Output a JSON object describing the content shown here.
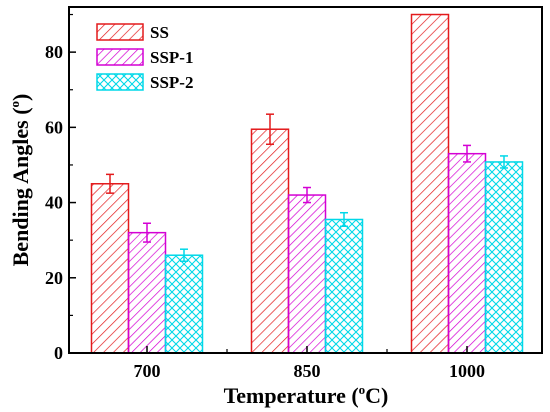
{
  "chart_data": {
    "type": "bar",
    "xlabel": {
      "prefix": "Temperature (",
      "sup": "o",
      "suffix": "C)"
    },
    "ylabel": {
      "prefix": "Bending Angles (",
      "sup": "o",
      "suffix": ")"
    },
    "categories": [
      "700",
      "850",
      "1000"
    ],
    "ylim": [
      0,
      92
    ],
    "yticks": [
      0,
      20,
      40,
      60,
      80
    ],
    "grid": false,
    "legend_position": "top-left",
    "series": [
      {
        "name": "SS",
        "color": "#e31a1c",
        "pattern": "diagonal-hatch",
        "values": [
          45.0,
          59.5,
          90.0
        ],
        "errors": [
          2.5,
          4.0,
          0
        ]
      },
      {
        "name": "SSP-1",
        "color": "#d400d4",
        "pattern": "diagonal-hatch",
        "values": [
          32.0,
          42.0,
          53.0
        ],
        "errors": [
          2.5,
          2.0,
          2.2
        ]
      },
      {
        "name": "SSP-2",
        "color": "#00d8e8",
        "pattern": "cross-hatch",
        "values": [
          26.0,
          35.5,
          50.8
        ],
        "errors": [
          1.6,
          1.8,
          1.6
        ]
      }
    ]
  }
}
